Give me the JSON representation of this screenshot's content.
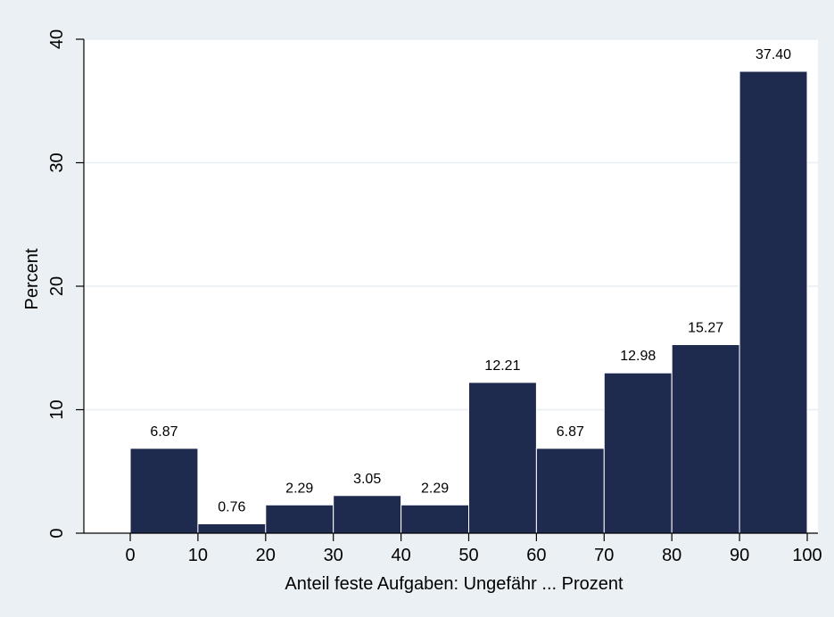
{
  "chart_data": {
    "type": "bar",
    "histogram": true,
    "xlabel": "Anteil feste Aufgaben: Ungefähr ... Prozent",
    "ylabel": "Percent",
    "xlim": [
      -10,
      100
    ],
    "ylim": [
      0,
      40
    ],
    "x_ticks": [
      0,
      10,
      20,
      30,
      40,
      50,
      60,
      70,
      80,
      90,
      100
    ],
    "y_ticks": [
      0,
      10,
      20,
      30,
      40
    ],
    "grid": true,
    "bins": [
      {
        "start": 0,
        "end": 10,
        "value": 6.87,
        "label": "6.87"
      },
      {
        "start": 10,
        "end": 20,
        "value": 0.76,
        "label": "0.76"
      },
      {
        "start": 20,
        "end": 30,
        "value": 2.29,
        "label": "2.29"
      },
      {
        "start": 30,
        "end": 40,
        "value": 3.05,
        "label": "3.05"
      },
      {
        "start": 40,
        "end": 50,
        "value": 2.29,
        "label": "2.29"
      },
      {
        "start": 50,
        "end": 60,
        "value": 12.21,
        "label": "12.21"
      },
      {
        "start": 60,
        "end": 70,
        "value": 6.87,
        "label": "6.87"
      },
      {
        "start": 70,
        "end": 80,
        "value": 12.98,
        "label": "12.98"
      },
      {
        "start": 80,
        "end": 90,
        "value": 15.27,
        "label": "15.27"
      },
      {
        "start": 90,
        "end": 100,
        "value": 37.4,
        "label": "37.40"
      }
    ],
    "bar_color": "#1f2a4f",
    "plot_bg": "#ffffff",
    "outer_bg": "#eaf0f3",
    "grid_color": "#e8eef2"
  }
}
